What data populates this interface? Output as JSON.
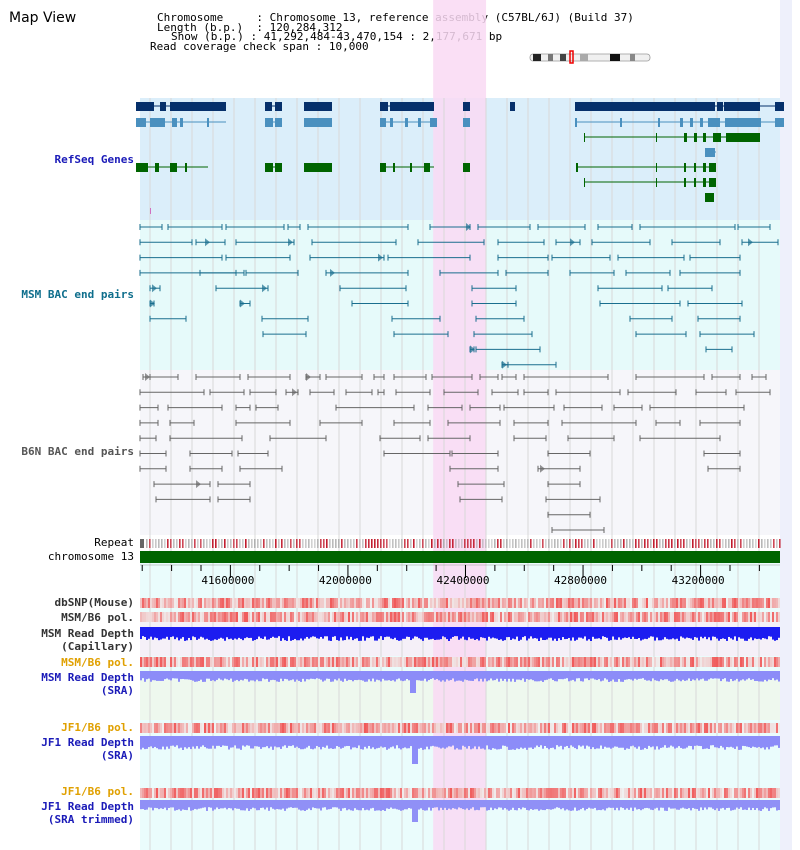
{
  "app": {
    "title": "Map View"
  },
  "info": {
    "chromosome_label": "Chromosome",
    "chromosome_value": "Chromosome 13, reference assembly (C57BL/6J) (Build 37)",
    "length_label": "Length (b.p.)",
    "length_value": "120,284,312",
    "show_label": "Show (b.p.)",
    "show_value": "41,292,484-43,470,154 : 2,177,671 bp",
    "span_label": "Read coverage check span",
    "span_value": "10,000"
  },
  "tracks": {
    "refseq": "RefSeq Genes",
    "msm_bac": "MSM BAC end pairs",
    "b6n_bac": "B6N BAC end pairs",
    "repeat": "Repeat",
    "chromosome": "chromosome 13",
    "dbsnp": "dbSNP(Mouse)",
    "msm_b6_pol_1": "MSM/B6 pol.",
    "msm_depth_cap_1": "MSM Read Depth",
    "msm_depth_cap_2": "(Capillary)",
    "msm_b6_pol_2": "MSM/B6 pol.",
    "msm_depth_sra_1": "MSM Read Depth",
    "msm_depth_sra_2": "(SRA)",
    "jf1_b6_pol_1": "JF1/B6 pol.",
    "jf1_depth_sra_1": "JF1 Read Depth",
    "jf1_depth_sra_2": "(SRA)",
    "jf1_b6_pol_2": "JF1/B6 pol.",
    "jf1_depth_trim_1": "JF1 Read Depth",
    "jf1_depth_trim_2": "(SRA trimmed)"
  },
  "axis": {
    "ticks": [
      {
        "label": "41600000",
        "value": 41600000
      },
      {
        "label": "42000000",
        "value": 42000000
      },
      {
        "label": "42400000",
        "value": 42400000
      },
      {
        "label": "42800000",
        "value": 42800000
      },
      {
        "label": "43200000",
        "value": 43200000
      }
    ],
    "range": [
      41292484,
      43470154
    ],
    "highlight": [
      42290000,
      42470000
    ]
  },
  "colors": {
    "refseq_bg": "#dbeefa",
    "msm_bg": "#e6fafa",
    "b6n_bg": "#f6f6fa",
    "highlight": "#f9d9f3",
    "gene_dark": "#06306b",
    "gene_mid": "#4a90bf",
    "gene_green": "#006400",
    "msm_line": "#1a6e8e",
    "b6n_line": "#666666",
    "chrom_green": "#006400",
    "repeat_red": "#c0182a",
    "depth_cap": "#1c1cf0",
    "depth_sra": "#8c8cf8"
  }
}
